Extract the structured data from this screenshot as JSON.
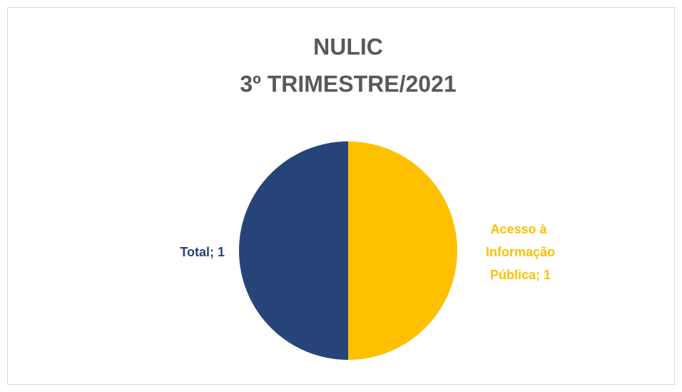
{
  "chart_data": {
    "type": "pie",
    "title": [
      "NULIC",
      "3º TRIMESTRE/2021"
    ],
    "values": [
      1,
      1
    ],
    "value_labels": [
      "Acesso à Informação Pública; 1",
      "Total; 1"
    ],
    "colors": [
      "#FFC000",
      "#264478"
    ]
  }
}
